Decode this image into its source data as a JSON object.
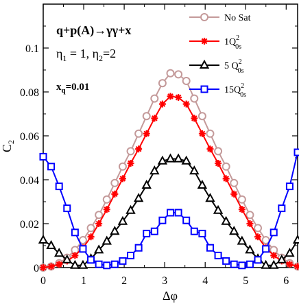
{
  "chart_data": {
    "type": "line",
    "xlabel": "Δφ",
    "ylabel": "C",
    "ylabel_subscript": "2",
    "xlim": [
      0,
      6.283
    ],
    "ylim": [
      0,
      0.12
    ],
    "xticks": [
      0,
      1,
      2,
      3,
      4,
      5,
      6
    ],
    "xtick_labels": [
      "0",
      "1",
      "2",
      "3",
      "4",
      "5",
      "6"
    ],
    "yticks": [
      0,
      0.02,
      0.04,
      0.06,
      0.08,
      0.1
    ],
    "ytick_labels": [
      "0",
      "0.02",
      "0.04",
      "0.06",
      "0.08",
      "0.1"
    ],
    "grid": false,
    "legend_position": "top-right",
    "annotations": {
      "process": "q+p(A)→γγ+x",
      "eta1_main": "η",
      "eta1_sub": "1",
      "eta1_rest": " = 1, ",
      "eta2_main": "η",
      "eta2_sub": "2",
      "eta2_rest": "=2",
      "xq_main": "x",
      "xq_sub": "q",
      "xq_rest": "=0.01"
    },
    "x": [
      0.0,
      0.1963,
      0.3927,
      0.589,
      0.7854,
      0.9817,
      1.1781,
      1.3744,
      1.5708,
      1.7671,
      1.9635,
      2.1598,
      2.3562,
      2.5525,
      2.7489,
      2.9452,
      3.1416,
      3.3379,
      3.5343,
      3.7306,
      3.927,
      4.1233,
      4.3197,
      4.516,
      4.7124,
      4.9087,
      5.1051,
      5.3014,
      5.4978,
      5.6941,
      5.8905,
      6.0868,
      6.2832
    ],
    "series": [
      {
        "name": "No Sat",
        "color": "#c49a9a",
        "marker": "circle",
        "values": [
          0.0,
          0.0005,
          0.002,
          0.0045,
          0.008,
          0.0125,
          0.018,
          0.024,
          0.031,
          0.0385,
          0.046,
          0.053,
          0.061,
          0.069,
          0.077,
          0.084,
          0.0885,
          0.088,
          0.085,
          0.077,
          0.069,
          0.061,
          0.053,
          0.046,
          0.0385,
          0.031,
          0.024,
          0.018,
          0.0125,
          0.008,
          0.0045,
          0.002,
          0.0005
        ]
      },
      {
        "name": "1Q",
        "name_sup": "2",
        "name_sub": "0s",
        "color": "#ff0000",
        "marker": "star",
        "values": [
          0.0,
          0.0005,
          0.0015,
          0.003,
          0.0055,
          0.009,
          0.014,
          0.02,
          0.0265,
          0.0335,
          0.0405,
          0.0475,
          0.054,
          0.061,
          0.068,
          0.0745,
          0.078,
          0.0775,
          0.0745,
          0.068,
          0.061,
          0.054,
          0.0475,
          0.0405,
          0.0335,
          0.0265,
          0.02,
          0.014,
          0.009,
          0.0055,
          0.003,
          0.0015,
          0.0005
        ]
      },
      {
        "name": "5 Q",
        "name_sup": "2",
        "name_sub": "0s",
        "color": "#000000",
        "marker": "triangle",
        "values": [
          0.0125,
          0.01,
          0.0065,
          0.0035,
          0.001,
          0.001,
          0.004,
          0.008,
          0.012,
          0.0165,
          0.021,
          0.026,
          0.0315,
          0.0375,
          0.044,
          0.0485,
          0.0495,
          0.0495,
          0.0485,
          0.044,
          0.0375,
          0.0315,
          0.026,
          0.021,
          0.0165,
          0.012,
          0.008,
          0.004,
          0.001,
          0.001,
          0.0035,
          0.0065,
          0.0125
        ]
      },
      {
        "name": "15Q",
        "name_sup": "2",
        "name_sub": "0s",
        "color": "#0000ff",
        "marker": "square",
        "values": [
          0.0505,
          0.046,
          0.037,
          0.027,
          0.016,
          0.0085,
          0.0035,
          0.0015,
          0.001,
          0.0015,
          0.003,
          0.0055,
          0.009,
          0.0155,
          0.0165,
          0.0215,
          0.025,
          0.025,
          0.0215,
          0.0165,
          0.0155,
          0.009,
          0.0055,
          0.003,
          0.0015,
          0.001,
          0.0015,
          0.0035,
          0.0085,
          0.016,
          0.027,
          0.037,
          0.0525
        ]
      }
    ]
  }
}
